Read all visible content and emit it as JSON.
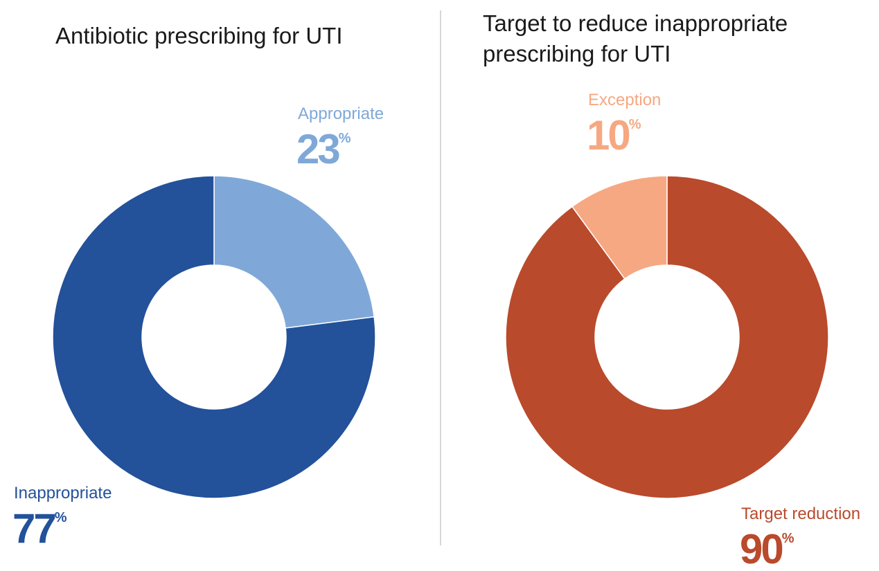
{
  "chart_data": [
    {
      "type": "pie",
      "title": "Antibiotic prescribing for UTI",
      "categories": [
        "Appropriate",
        "Inappropriate"
      ],
      "values": [
        23,
        77
      ],
      "value_labels": [
        "23%",
        "77%"
      ],
      "colors": [
        "#7fa8d8",
        "#23519a"
      ],
      "donut": true
    },
    {
      "type": "pie",
      "title": "Target to reduce inappropriate prescribing for UTI",
      "categories": [
        "Target reduction",
        "Exception"
      ],
      "values": [
        90,
        10
      ],
      "value_labels": [
        "90%",
        "10%"
      ],
      "colors": [
        "#b94a2c",
        "#f6a882"
      ],
      "donut": true
    }
  ]
}
